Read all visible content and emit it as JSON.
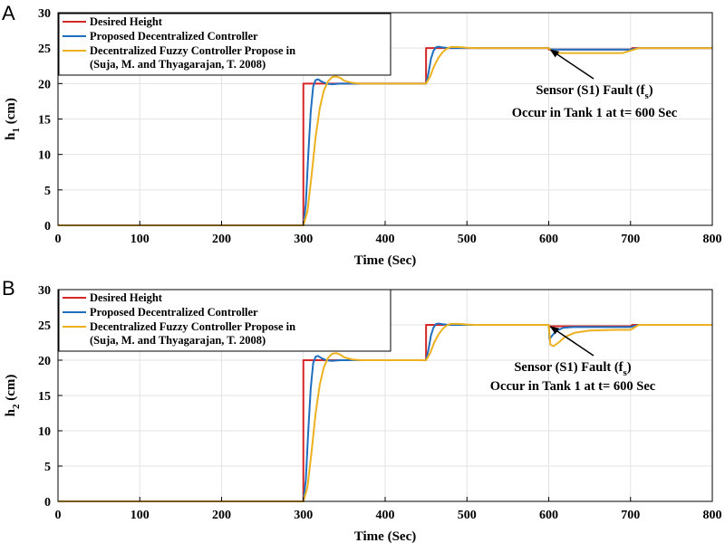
{
  "chart_data": [
    {
      "type": "line",
      "panel_label": "A",
      "xlabel": "Time (Sec)",
      "ylabel_main": "h",
      "ylabel_sub": "1",
      "ylabel_unit": " (cm)",
      "xlim": [
        0,
        800
      ],
      "ylim": [
        0,
        30
      ],
      "xticks": [
        0,
        100,
        200,
        300,
        400,
        500,
        600,
        700,
        800
      ],
      "yticks": [
        0,
        5,
        10,
        15,
        20,
        25,
        30
      ],
      "grid": true,
      "legend_position": "top-left",
      "legend": [
        "Desired Height",
        "Proposed Decentralized Controller",
        "Decentralized Fuzzy Controller Propose in",
        "(Suja, M. and Thyagarajan, T. 2008)"
      ],
      "annotation": {
        "line1_main": "Sensor (S1) Fault (f",
        "line1_sub": "s",
        "line1_end": ")",
        "line2": "Occur in Tank 1 at t= 600 Sec",
        "arrow_to": [
          600,
          25
        ]
      },
      "series": [
        {
          "name": "Desired Height",
          "color": "#d62728",
          "x": [
            0,
            300,
            300,
            450,
            450,
            600,
            600,
            602,
            700,
            702,
            800
          ],
          "y": [
            0,
            0,
            20,
            20,
            25,
            25,
            24.8,
            24.8,
            24.8,
            25,
            25
          ]
        },
        {
          "name": "Proposed Decentralized Controller",
          "color": "#1f6fc1",
          "x": [
            0,
            300,
            303,
            306,
            309,
            312,
            315,
            318,
            322,
            328,
            335,
            345,
            450,
            453,
            456,
            459,
            462,
            465,
            470,
            478,
            490,
            600,
            601,
            605,
            620,
            660,
            700,
            710,
            800
          ],
          "y": [
            0,
            0,
            3,
            10,
            16,
            19.6,
            20.5,
            20.6,
            20.3,
            20.0,
            19.9,
            20,
            20,
            21.5,
            23.5,
            24.6,
            25.1,
            25.2,
            25.1,
            25,
            25,
            25,
            24.9,
            24.8,
            24.8,
            24.8,
            24.8,
            25,
            25
          ]
        },
        {
          "name": "Decentralized Fuzzy Controller Propose in (Suja, M. and Thyagarajan, T. 2008)",
          "color": "#edb120",
          "x": [
            0,
            300,
            305,
            310,
            315,
            320,
            325,
            330,
            335,
            340,
            345,
            350,
            360,
            370,
            390,
            450,
            455,
            460,
            465,
            470,
            475,
            480,
            490,
            500,
            510,
            600,
            603,
            606,
            612,
            625,
            650,
            690,
            710,
            800
          ],
          "y": [
            0,
            0,
            2,
            7,
            12.5,
            16.5,
            19,
            20.3,
            20.9,
            21,
            20.8,
            20.4,
            20.1,
            20,
            20,
            20,
            21,
            22.5,
            23.6,
            24.4,
            24.9,
            25.15,
            25.15,
            25.05,
            25,
            25,
            24.7,
            24.4,
            24.3,
            24.3,
            24.3,
            24.3,
            25,
            25
          ]
        }
      ]
    },
    {
      "type": "line",
      "panel_label": "B",
      "xlabel": "Time (Sec)",
      "ylabel_main": "h",
      "ylabel_sub": "2",
      "ylabel_unit": " (cm)",
      "xlim": [
        0,
        800
      ],
      "ylim": [
        0,
        30
      ],
      "xticks": [
        0,
        100,
        200,
        300,
        400,
        500,
        600,
        700,
        800
      ],
      "yticks": [
        0,
        5,
        10,
        15,
        20,
        25,
        30
      ],
      "grid": true,
      "legend_position": "top-left",
      "legend": [
        "Desired Height",
        "Proposed Decentralized Controller",
        "Decentralized Fuzzy Controller Propose in",
        "(Suja, M. and Thyagarajan, T. 2008)"
      ],
      "annotation": {
        "line1_main": "Sensor (S1) Fault (f",
        "line1_sub": "s",
        "line1_end": ")",
        "line2": "Occur in Tank 1 at t= 600 Sec",
        "arrow_to": [
          600,
          25
        ]
      },
      "series": [
        {
          "name": "Desired Height",
          "color": "#d62728",
          "x": [
            0,
            300,
            300,
            450,
            450,
            600,
            600,
            602,
            700,
            702,
            800
          ],
          "y": [
            0,
            0,
            20,
            20,
            25,
            25,
            24.8,
            24.8,
            24.8,
            25,
            25
          ]
        },
        {
          "name": "Proposed Decentralized Controller",
          "color": "#1f6fc1",
          "x": [
            0,
            300,
            303,
            306,
            309,
            312,
            315,
            318,
            322,
            328,
            335,
            345,
            450,
            453,
            456,
            459,
            462,
            465,
            470,
            478,
            490,
            600,
            601,
            605,
            610,
            618,
            630,
            650,
            700,
            710,
            800
          ],
          "y": [
            0,
            0,
            3,
            10,
            16,
            19.6,
            20.5,
            20.6,
            20.3,
            20.0,
            19.9,
            20,
            20,
            21.5,
            23.5,
            24.6,
            25.1,
            25.2,
            25.1,
            25,
            25,
            25,
            23.0,
            23.6,
            24.2,
            24.6,
            24.7,
            24.7,
            24.7,
            25,
            25
          ]
        },
        {
          "name": "Decentralized Fuzzy Controller Propose in (Suja, M. and Thyagarajan, T. 2008)",
          "color": "#edb120",
          "x": [
            0,
            300,
            305,
            310,
            315,
            320,
            325,
            330,
            335,
            340,
            345,
            350,
            360,
            370,
            390,
            450,
            455,
            460,
            465,
            470,
            475,
            480,
            490,
            500,
            510,
            600,
            602,
            606,
            612,
            620,
            632,
            650,
            680,
            700,
            710,
            800
          ],
          "y": [
            0,
            0,
            2,
            7,
            12.5,
            16.5,
            19,
            20.3,
            20.9,
            21,
            20.8,
            20.4,
            20.1,
            20,
            20,
            20,
            21,
            22.5,
            23.6,
            24.4,
            24.9,
            25.15,
            25.15,
            25.05,
            25,
            25,
            22.2,
            22.0,
            22.5,
            23.3,
            23.9,
            24.2,
            24.3,
            24.3,
            25,
            25
          ]
        }
      ]
    }
  ]
}
